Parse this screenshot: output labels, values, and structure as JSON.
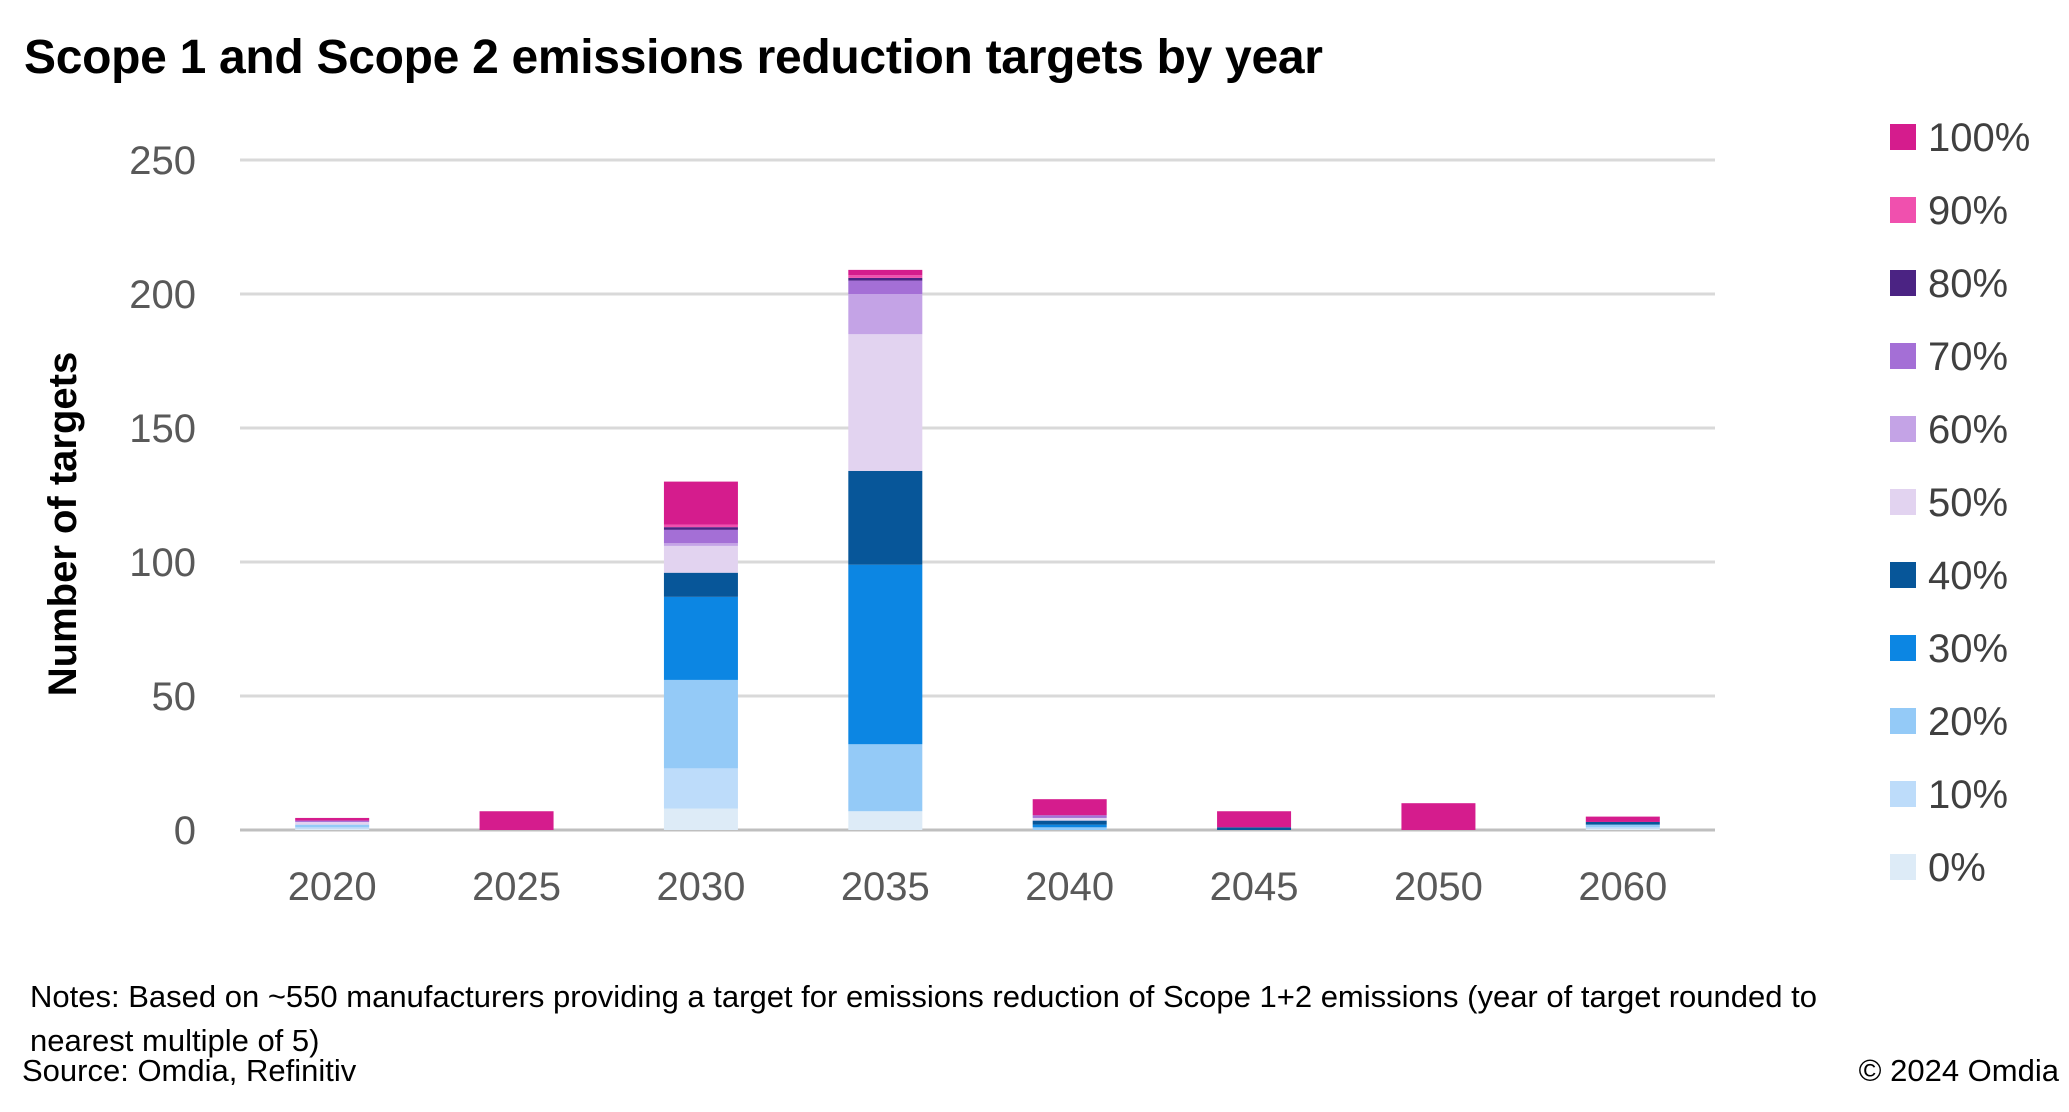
{
  "chart_data": {
    "type": "bar",
    "stacked": true,
    "title": "Scope 1 and Scope 2 emissions reduction targets by year",
    "xlabel": "",
    "ylabel": "Number of targets",
    "ylim": [
      0,
      250
    ],
    "yticks": [
      0,
      50,
      100,
      150,
      200,
      250
    ],
    "grid": true,
    "legend_position": "right",
    "categories": [
      "2020",
      "2025",
      "2030",
      "2035",
      "2040",
      "2045",
      "2050",
      "2060"
    ],
    "series": [
      {
        "name": "0%",
        "color": "#DDEBF7",
        "values": [
          0.5,
          0,
          8,
          7,
          0,
          0,
          0,
          0.5
        ]
      },
      {
        "name": "10%",
        "color": "#BDDCFA",
        "values": [
          0.5,
          0,
          15,
          0,
          0,
          0,
          0,
          0.5
        ]
      },
      {
        "name": "20%",
        "color": "#94CAF7",
        "values": [
          1,
          0,
          33,
          25,
          1,
          0,
          0,
          1
        ]
      },
      {
        "name": "30%",
        "color": "#0C86E3",
        "values": [
          0,
          0,
          31,
          67,
          1,
          0,
          0,
          0
        ]
      },
      {
        "name": "40%",
        "color": "#075699",
        "values": [
          0,
          0,
          9,
          35,
          1.5,
          1,
          0,
          1
        ]
      },
      {
        "name": "50%",
        "color": "#E2D3F0",
        "values": [
          1,
          0,
          10,
          51,
          1,
          0,
          0,
          0
        ]
      },
      {
        "name": "60%",
        "color": "#C4A3E6",
        "values": [
          0,
          0,
          1,
          15,
          0,
          0,
          0,
          0
        ]
      },
      {
        "name": "70%",
        "color": "#A46FD6",
        "values": [
          0.5,
          0,
          5,
          5,
          1,
          0,
          0,
          0
        ]
      },
      {
        "name": "80%",
        "color": "#4B2383",
        "values": [
          0,
          0,
          1,
          1,
          0,
          0,
          0,
          0
        ]
      },
      {
        "name": "90%",
        "color": "#F050AE",
        "values": [
          0,
          0,
          1,
          1,
          0,
          0,
          0,
          0
        ]
      },
      {
        "name": "100%",
        "color": "#D51C8D",
        "values": [
          1,
          7,
          16,
          2,
          6,
          6,
          10,
          2
        ]
      }
    ]
  },
  "notes": "Notes: Based on ~550 manufacturers providing a target for emissions reduction of Scope 1+2 emissions (year of target rounded to nearest multiple of 5)",
  "source": "Source: Omdia, Refinitiv",
  "copyright": "© 2024 Omdia",
  "colors": {
    "gridline": "#D9D9D9",
    "axis": "#BFBFBF",
    "tick_text": "#595959"
  }
}
